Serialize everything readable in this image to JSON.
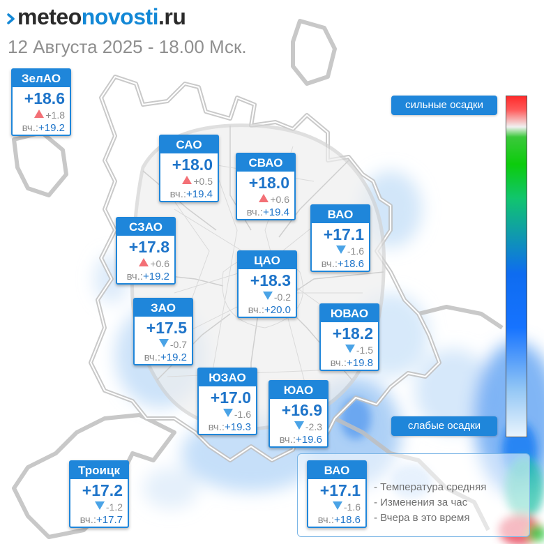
{
  "brand": {
    "prefix": "meteo",
    "middle": "novosti",
    "suffix": ".ru"
  },
  "subtitle": "12 Августа 2025 - 18.00 Мск.",
  "colors": {
    "accent": "#1f86da",
    "temperature_text": "#1e74c9",
    "up_arrow": "#f37076",
    "down_arrow": "#4aa3e6",
    "muted_text": "#8c8c8c"
  },
  "districts": [
    {
      "name": "ЗелАО",
      "temp": "+18.6",
      "dir": "up",
      "change": "+1.8",
      "yest_prefix": "вч.:",
      "yesterday": "+19.2"
    },
    {
      "name": "САО",
      "temp": "+18.0",
      "dir": "up",
      "change": "+0.5",
      "yest_prefix": "вч.:",
      "yesterday": "+19.4"
    },
    {
      "name": "СВАО",
      "temp": "+18.0",
      "dir": "up",
      "change": "+0.6",
      "yest_prefix": "вч.:",
      "yesterday": "+19.4"
    },
    {
      "name": "ВАО",
      "temp": "+17.1",
      "dir": "down",
      "change": "-1.6",
      "yest_prefix": "вч.:",
      "yesterday": "+18.6"
    },
    {
      "name": "СЗАО",
      "temp": "+17.8",
      "dir": "up",
      "change": "+0.6",
      "yest_prefix": "вч.:",
      "yesterday": "+19.2"
    },
    {
      "name": "ЦАО",
      "temp": "+18.3",
      "dir": "down",
      "change": "-0.2",
      "yest_prefix": "вч.:",
      "yesterday": "+20.0"
    },
    {
      "name": "ЗАО",
      "temp": "+17.5",
      "dir": "down",
      "change": "-0.7",
      "yest_prefix": "вч.:",
      "yesterday": "+19.2"
    },
    {
      "name": "ЮВАО",
      "temp": "+18.2",
      "dir": "down",
      "change": "-1.5",
      "yest_prefix": "вч.:",
      "yesterday": "+19.8"
    },
    {
      "name": "ЮЗАО",
      "temp": "+17.0",
      "dir": "down",
      "change": "-1.6",
      "yest_prefix": "вч.:",
      "yesterday": "+19.3"
    },
    {
      "name": "ЮАО",
      "temp": "+16.9",
      "dir": "down",
      "change": "-2.3",
      "yest_prefix": "вч.:",
      "yesterday": "+19.6"
    },
    {
      "name": "Троицк",
      "temp": "+17.2",
      "dir": "down",
      "change": "-1.2",
      "yest_prefix": "вч.:",
      "yesterday": "+17.7"
    }
  ],
  "scale": {
    "top_label": "сильные осадки",
    "bottom_label": "слабые осадки"
  },
  "legend": {
    "example": {
      "name": "ВАО",
      "temp": "+17.1",
      "dir": "down",
      "change": "-1.6",
      "yest_prefix": "вч.:",
      "yesterday": "+18.6"
    },
    "lines": [
      "- Температура средняя",
      "- Изменения за час",
      "- Вчера в это время"
    ]
  }
}
